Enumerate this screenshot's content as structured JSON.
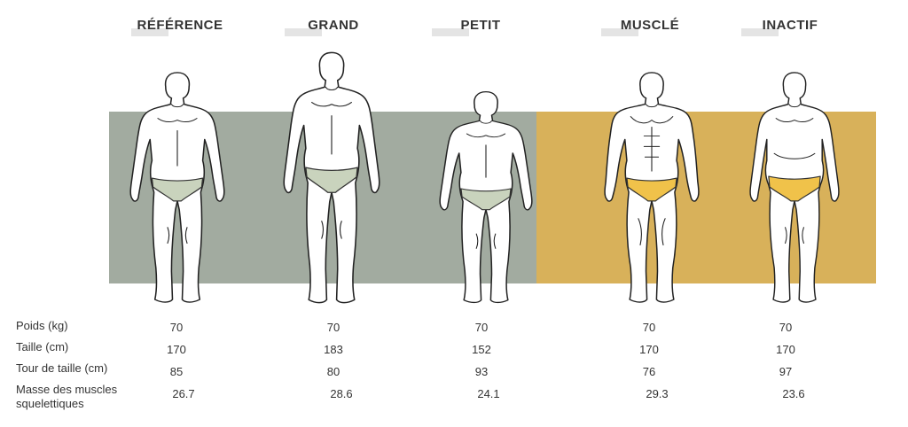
{
  "colors": {
    "panel_grey": "#a2aba0",
    "panel_gold": "#d8b15a",
    "brief_green": "#c9d3bd",
    "brief_gold": "#f0c24a"
  },
  "columns": [
    {
      "header": "RÉFÉRENCE",
      "poids": "70",
      "taille": "170",
      "tour": "85",
      "masse": "26.7"
    },
    {
      "header": "GRAND",
      "poids": "70",
      "taille": "183",
      "tour": "80",
      "masse": "28.6"
    },
    {
      "header": "PETIT",
      "poids": "70",
      "taille": "152",
      "tour": "93",
      "masse": "24.1"
    },
    {
      "header": "MUSCLÉ",
      "poids": "70",
      "taille": "170",
      "tour": "76",
      "masse": "29.3"
    },
    {
      "header": "INACTIF",
      "poids": "70",
      "taille": "170",
      "tour": "97",
      "masse": "23.6"
    }
  ],
  "rows": {
    "poids": "Poids (kg)",
    "taille": "Taille (cm)",
    "tour": "Tour de taille (cm)",
    "masse_line1": "Masse des muscles",
    "masse_line2": "squelettiques"
  }
}
